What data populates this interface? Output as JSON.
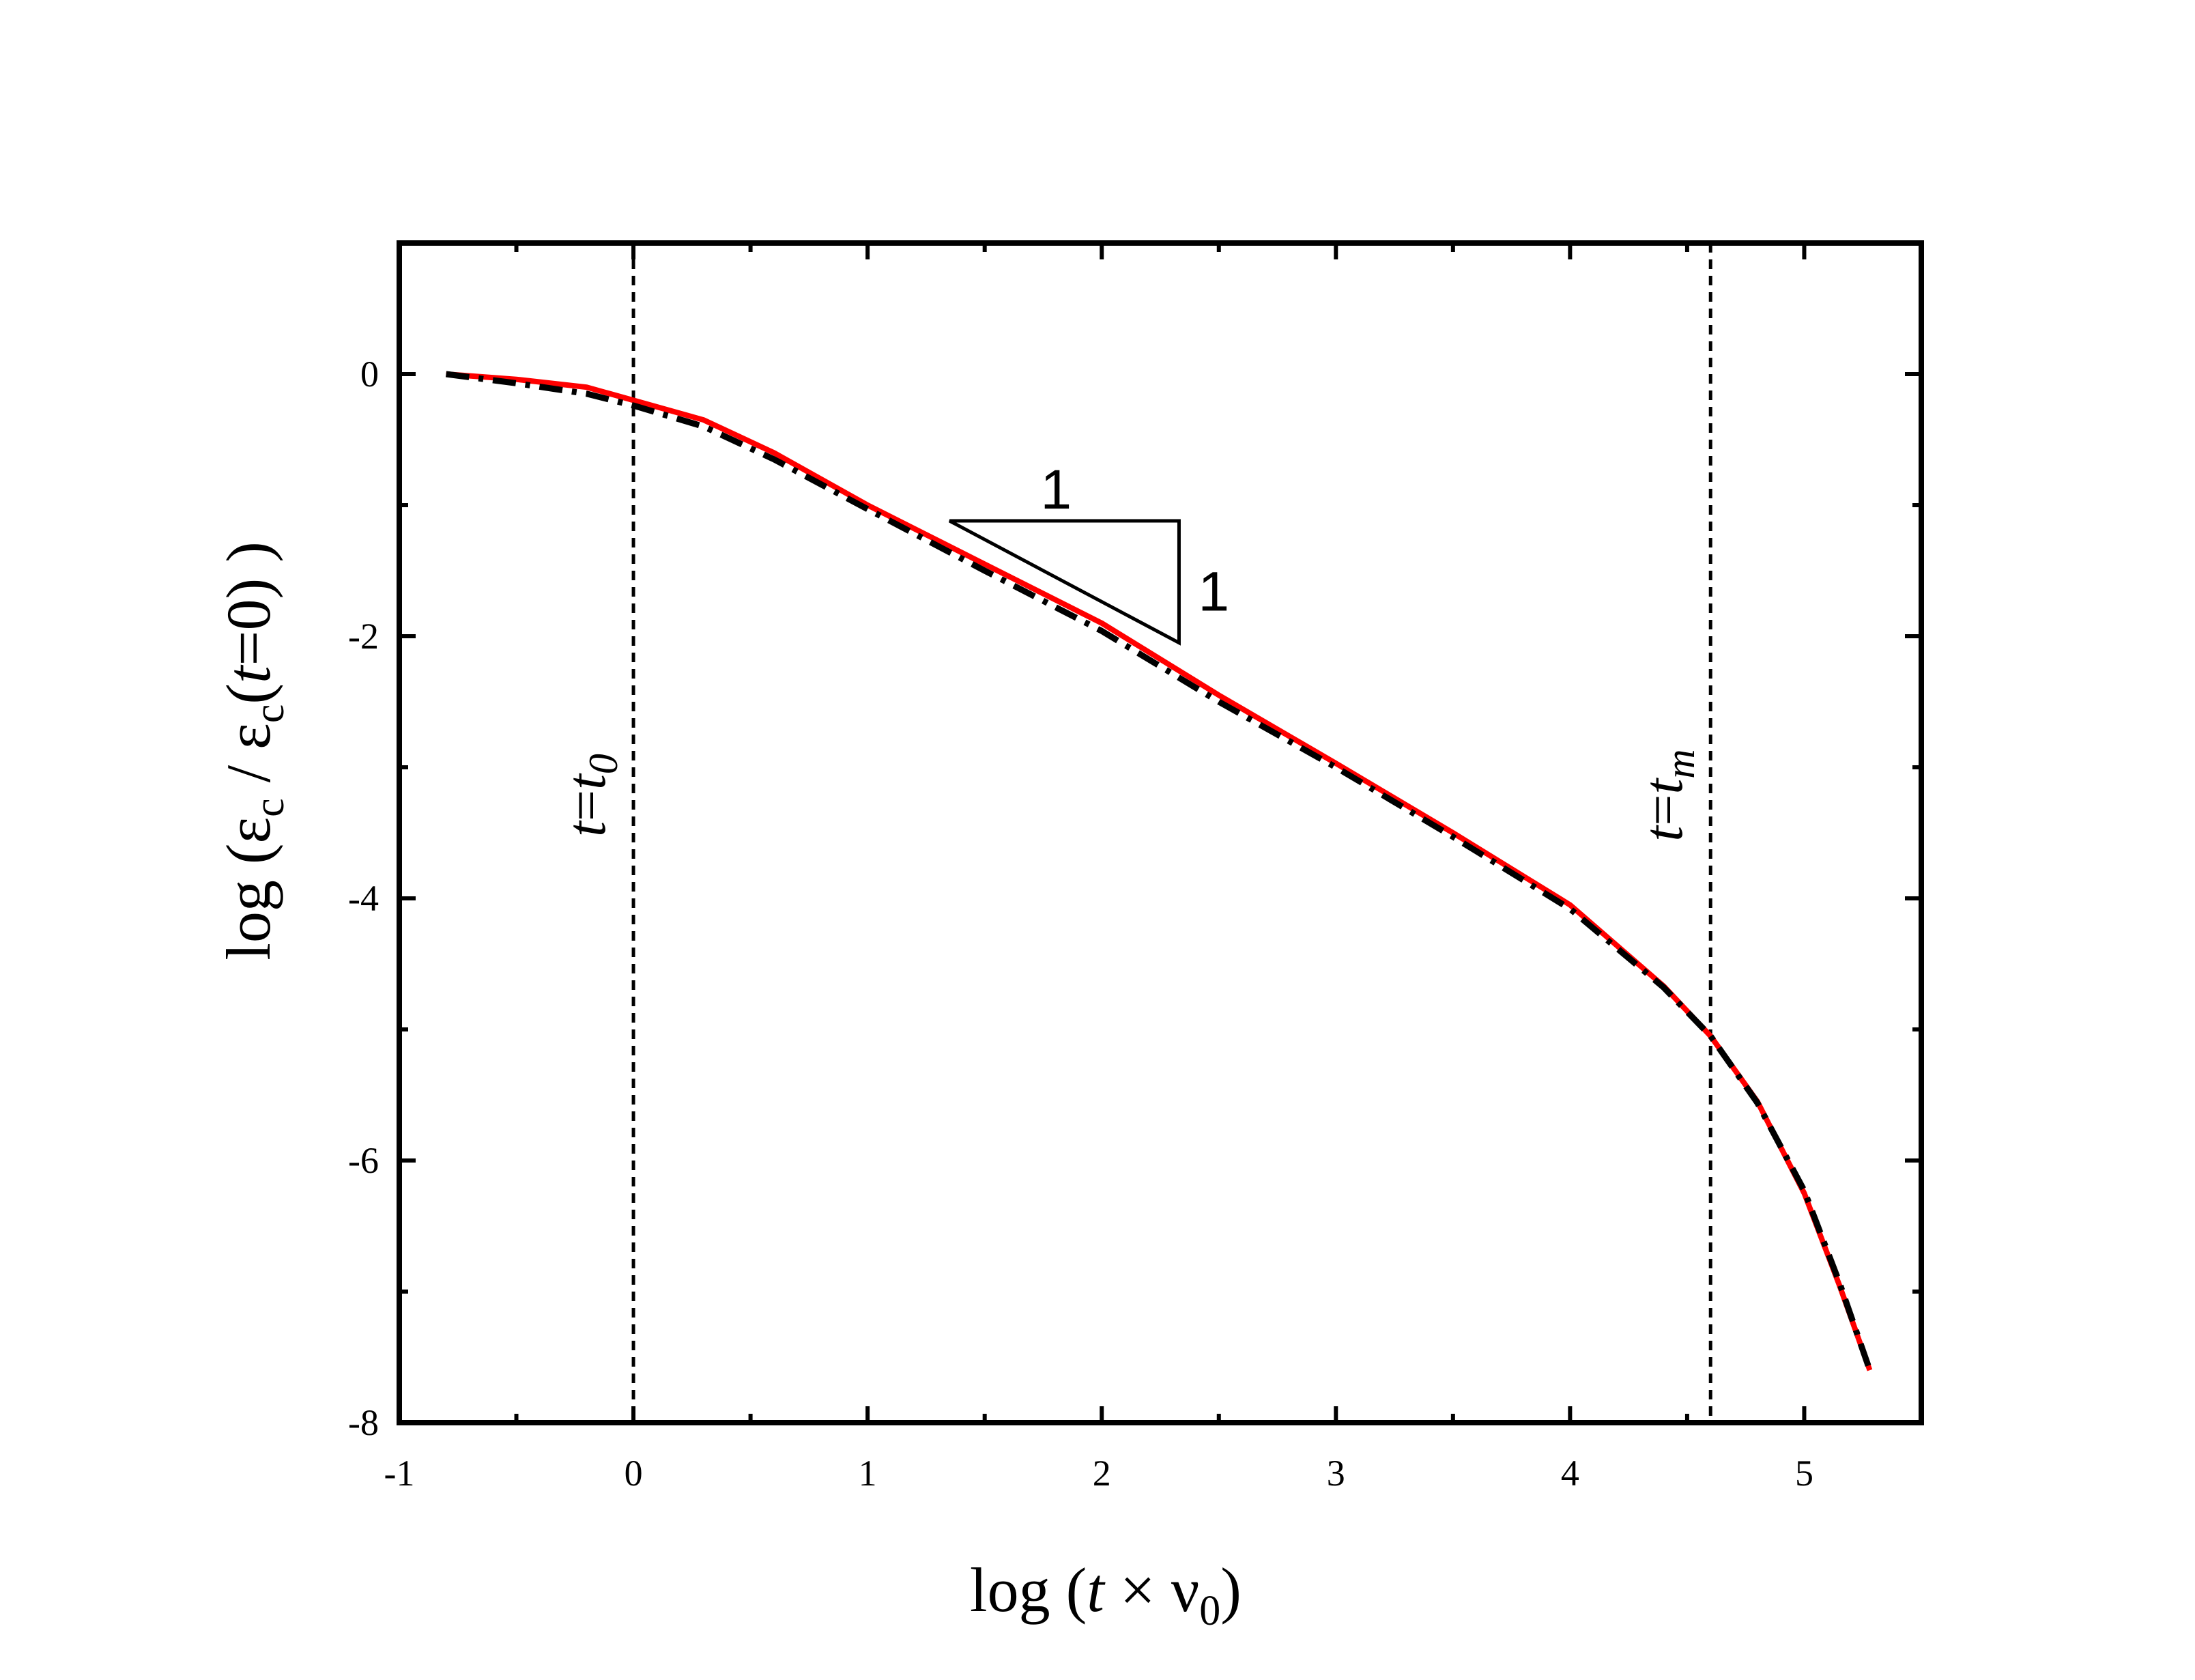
{
  "chart_data": {
    "type": "line",
    "xlabel": {
      "prefix": "log (",
      "var": "t",
      "middle": " × ν",
      "sub": "0",
      "suffix": ")"
    },
    "ylabel": {
      "prefix": "log (",
      "num": "ε",
      "num_sub": "c",
      "slash": " / ",
      "den": "ε",
      "den_sub": "c",
      "paren_open": "(",
      "arg_var": "t",
      "arg_rest": "=0) )"
    },
    "xlim": [
      -1,
      5.5
    ],
    "ylim": [
      -8,
      1
    ],
    "x_ticks": [
      "-1",
      "0",
      "1",
      "2",
      "3",
      "4",
      "5"
    ],
    "y_ticks": [
      "0",
      "-2",
      "-4",
      "-6",
      "-8"
    ],
    "x_minor_ticks": [
      -0.5,
      0.5,
      1.5,
      2.5,
      3.5,
      4.5
    ],
    "y_minor_ticks": [
      -1,
      -3,
      -5,
      -7
    ],
    "vlines": [
      {
        "x": 0,
        "label": {
          "var": "t",
          "eq": "=",
          "var2": "t",
          "sub": "0"
        }
      },
      {
        "x": 4.6,
        "label": {
          "var": "t",
          "eq": "=",
          "var2": "t",
          "sub": "m"
        }
      }
    ],
    "slope_triangle": {
      "x1": 1.35,
      "x2": 2.33,
      "y_top": -1.12,
      "y_bottom": -2.05,
      "run_label": "1",
      "rise_label": "1"
    },
    "series": [
      {
        "color": "#ff0000",
        "style": "solid",
        "x": [
          -0.8,
          -0.5,
          -0.2,
          0,
          0.3,
          0.6,
          1.0,
          1.5,
          2.0,
          2.5,
          3.0,
          3.5,
          4.0,
          4.4,
          4.6,
          4.8,
          5.0,
          5.15,
          5.28
        ],
        "y": [
          0,
          -0.04,
          -0.1,
          -0.2,
          -0.35,
          -0.6,
          -1.0,
          -1.45,
          -1.9,
          -2.45,
          -2.97,
          -3.5,
          -4.05,
          -4.67,
          -5.05,
          -5.55,
          -6.25,
          -6.95,
          -7.6
        ]
      },
      {
        "color": "#000000",
        "style": "dashdot",
        "x": [
          -0.8,
          -0.5,
          -0.2,
          0,
          0.3,
          0.6,
          1.0,
          1.5,
          2.0,
          2.5,
          3.0,
          3.5,
          4.0,
          4.4,
          4.6,
          4.8,
          5.0,
          5.15,
          5.28
        ],
        "y": [
          0,
          -0.07,
          -0.15,
          -0.24,
          -0.4,
          -0.65,
          -1.03,
          -1.5,
          -1.96,
          -2.5,
          -3.0,
          -3.53,
          -4.08,
          -4.68,
          -5.05,
          -5.56,
          -6.23,
          -6.93,
          -7.6
        ]
      }
    ]
  }
}
